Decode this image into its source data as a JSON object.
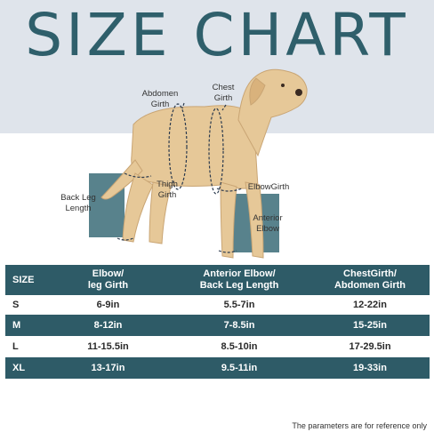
{
  "title": "SIZE CHART",
  "labels": {
    "abdomen_girth": [
      "Abdomen",
      "Girth"
    ],
    "chest_girth": [
      "Chest",
      "Girth"
    ],
    "back_leg_length": [
      "Back Leg",
      "Length"
    ],
    "thigh_girth": [
      "Thigh",
      "Girth"
    ],
    "elbow_girth": "ElbowGirth",
    "anterior_elbow": [
      "Anterior",
      "Elbow"
    ]
  },
  "table": {
    "headers": {
      "size": "SIZE",
      "col1": [
        "Elbow/",
        "leg Girth"
      ],
      "col2": [
        "Anterior Elbow/",
        "Back Leg Length"
      ],
      "col3": [
        "ChestGirth/",
        "Abdomen Girth"
      ]
    },
    "rows": [
      {
        "size": "S",
        "elbow_leg": "6-9in",
        "anterior_back": "5.5-7in",
        "chest_abdomen": "12-22in"
      },
      {
        "size": "M",
        "elbow_leg": "8-12in",
        "anterior_back": "7-8.5in",
        "chest_abdomen": "15-25in"
      },
      {
        "size": "L",
        "elbow_leg": "11-15.5in",
        "anterior_back": "8.5-10in",
        "chest_abdomen": "17-29.5in"
      },
      {
        "size": "XL",
        "elbow_leg": "13-17in",
        "anterior_back": "9.5-11in",
        "chest_abdomen": "19-33in"
      }
    ]
  },
  "footnote": "The parameters are for reference only",
  "colors": {
    "teal": "#2e5b67",
    "band": "#dfe4eb",
    "dog": "#e6c898"
  }
}
